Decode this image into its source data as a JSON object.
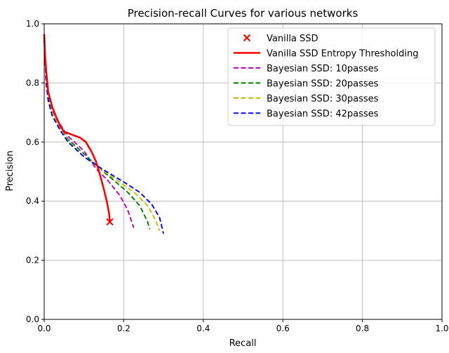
{
  "chart_data": {
    "type": "line",
    "title": "Precision-recall Curves for various networks",
    "xlabel": "Recall",
    "ylabel": "Precision",
    "xlim": [
      0.0,
      1.0
    ],
    "ylim": [
      0.0,
      1.0
    ],
    "xticks": [
      0.0,
      0.2,
      0.4,
      0.6,
      0.8,
      1.0
    ],
    "yticks": [
      0.0,
      0.2,
      0.4,
      0.6,
      0.8,
      1.0
    ],
    "xtick_labels": [
      "0.0",
      "0.2",
      "0.4",
      "0.6",
      "0.8",
      "1.0"
    ],
    "ytick_labels": [
      "0.0",
      "0.2",
      "0.4",
      "0.6",
      "0.8",
      "1.0"
    ],
    "grid": true,
    "legend_position": "top-right",
    "series": [
      {
        "name": "Vanilla SSD",
        "kind": "marker",
        "marker": "x",
        "color": "#ff0000",
        "points": [
          [
            0.165,
            0.33
          ]
        ]
      },
      {
        "name": "Vanilla SSD Entropy Thresholding",
        "kind": "solid",
        "color": "#ff0000",
        "points": [
          [
            0.0,
            0.965
          ],
          [
            0.002,
            0.9
          ],
          [
            0.005,
            0.84
          ],
          [
            0.01,
            0.77
          ],
          [
            0.02,
            0.72
          ],
          [
            0.03,
            0.685
          ],
          [
            0.04,
            0.655
          ],
          [
            0.05,
            0.635
          ],
          [
            0.07,
            0.625
          ],
          [
            0.09,
            0.615
          ],
          [
            0.105,
            0.6
          ],
          [
            0.12,
            0.565
          ],
          [
            0.13,
            0.535
          ],
          [
            0.14,
            0.49
          ],
          [
            0.15,
            0.44
          ],
          [
            0.158,
            0.395
          ],
          [
            0.163,
            0.36
          ],
          [
            0.165,
            0.33
          ]
        ]
      },
      {
        "name": "Bayesian SSD: 10passes",
        "kind": "dashed",
        "color": "#bf00bf",
        "points": [
          [
            0.0,
            0.95
          ],
          [
            0.005,
            0.8
          ],
          [
            0.01,
            0.75
          ],
          [
            0.02,
            0.71
          ],
          [
            0.04,
            0.66
          ],
          [
            0.06,
            0.62
          ],
          [
            0.08,
            0.595
          ],
          [
            0.1,
            0.57
          ],
          [
            0.13,
            0.51
          ],
          [
            0.16,
            0.47
          ],
          [
            0.19,
            0.42
          ],
          [
            0.21,
            0.37
          ],
          [
            0.22,
            0.33
          ],
          [
            0.225,
            0.31
          ]
        ]
      },
      {
        "name": "Bayesian SSD: 20passes",
        "kind": "dashed",
        "color": "#008000",
        "points": [
          [
            0.0,
            0.95
          ],
          [
            0.005,
            0.8
          ],
          [
            0.01,
            0.75
          ],
          [
            0.02,
            0.7
          ],
          [
            0.04,
            0.65
          ],
          [
            0.06,
            0.61
          ],
          [
            0.1,
            0.56
          ],
          [
            0.14,
            0.51
          ],
          [
            0.18,
            0.465
          ],
          [
            0.21,
            0.43
          ],
          [
            0.24,
            0.385
          ],
          [
            0.26,
            0.33
          ],
          [
            0.265,
            0.305
          ]
        ]
      },
      {
        "name": "Bayesian SSD: 30passes",
        "kind": "dashed",
        "color": "#bfbf00",
        "points": [
          [
            0.0,
            0.95
          ],
          [
            0.005,
            0.8
          ],
          [
            0.01,
            0.74
          ],
          [
            0.02,
            0.7
          ],
          [
            0.04,
            0.645
          ],
          [
            0.06,
            0.605
          ],
          [
            0.1,
            0.55
          ],
          [
            0.14,
            0.51
          ],
          [
            0.19,
            0.465
          ],
          [
            0.23,
            0.425
          ],
          [
            0.26,
            0.385
          ],
          [
            0.28,
            0.335
          ],
          [
            0.29,
            0.3
          ]
        ]
      },
      {
        "name": "Bayesian SSD: 42passes",
        "kind": "dashed",
        "color": "#0000ff",
        "points": [
          [
            0.0,
            0.95
          ],
          [
            0.005,
            0.8
          ],
          [
            0.01,
            0.74
          ],
          [
            0.02,
            0.69
          ],
          [
            0.04,
            0.64
          ],
          [
            0.06,
            0.6
          ],
          [
            0.1,
            0.55
          ],
          [
            0.15,
            0.505
          ],
          [
            0.2,
            0.465
          ],
          [
            0.24,
            0.43
          ],
          [
            0.27,
            0.39
          ],
          [
            0.29,
            0.345
          ],
          [
            0.3,
            0.29
          ]
        ]
      }
    ]
  }
}
